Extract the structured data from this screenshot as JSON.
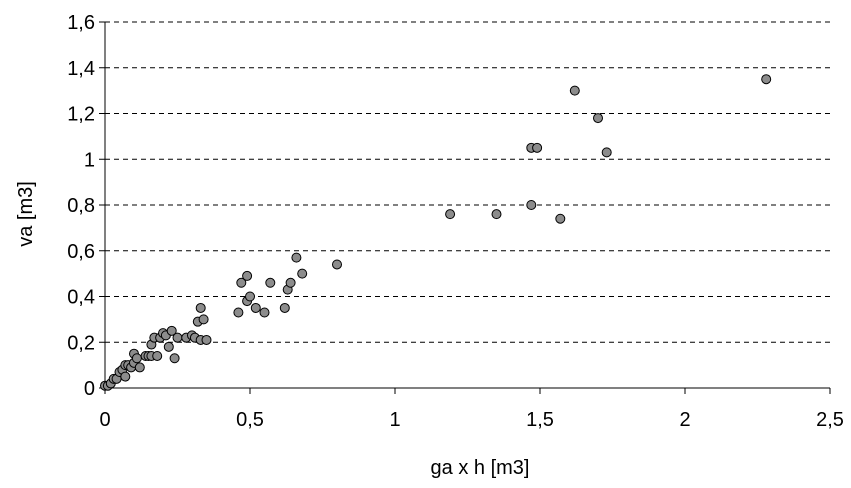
{
  "chart_data": {
    "type": "scatter",
    "title": "",
    "xlabel": "ga x h [m3]",
    "ylabel": "va [m3]",
    "xlim": [
      0,
      2.5
    ],
    "ylim": [
      0,
      1.6
    ],
    "x_ticks": [
      "0",
      "0,5",
      "1",
      "1,5",
      "2",
      "2,5"
    ],
    "y_ticks": [
      "0",
      "0,2",
      "0,4",
      "0,6",
      "0,8",
      "1",
      "1,2",
      "1,4",
      "1,6"
    ],
    "grid": "horizontal-dashed",
    "marker_color": "#8c8c8c",
    "series": [
      {
        "points": [
          [
            0.0,
            0.01
          ],
          [
            0.01,
            0.01
          ],
          [
            0.02,
            0.02
          ],
          [
            0.03,
            0.04
          ],
          [
            0.04,
            0.04
          ],
          [
            0.05,
            0.07
          ],
          [
            0.06,
            0.08
          ],
          [
            0.07,
            0.1
          ],
          [
            0.07,
            0.05
          ],
          [
            0.08,
            0.1
          ],
          [
            0.09,
            0.09
          ],
          [
            0.1,
            0.11
          ],
          [
            0.1,
            0.15
          ],
          [
            0.11,
            0.13
          ],
          [
            0.12,
            0.09
          ],
          [
            0.14,
            0.14
          ],
          [
            0.15,
            0.14
          ],
          [
            0.16,
            0.19
          ],
          [
            0.16,
            0.14
          ],
          [
            0.17,
            0.22
          ],
          [
            0.18,
            0.14
          ],
          [
            0.19,
            0.22
          ],
          [
            0.2,
            0.24
          ],
          [
            0.21,
            0.23
          ],
          [
            0.22,
            0.18
          ],
          [
            0.23,
            0.25
          ],
          [
            0.24,
            0.13
          ],
          [
            0.25,
            0.22
          ],
          [
            0.28,
            0.22
          ],
          [
            0.3,
            0.23
          ],
          [
            0.31,
            0.22
          ],
          [
            0.32,
            0.29
          ],
          [
            0.33,
            0.35
          ],
          [
            0.33,
            0.21
          ],
          [
            0.34,
            0.3
          ],
          [
            0.35,
            0.21
          ],
          [
            0.46,
            0.33
          ],
          [
            0.47,
            0.46
          ],
          [
            0.49,
            0.49
          ],
          [
            0.49,
            0.38
          ],
          [
            0.5,
            0.4
          ],
          [
            0.52,
            0.35
          ],
          [
            0.55,
            0.33
          ],
          [
            0.57,
            0.46
          ],
          [
            0.62,
            0.35
          ],
          [
            0.63,
            0.43
          ],
          [
            0.64,
            0.46
          ],
          [
            0.66,
            0.57
          ],
          [
            0.68,
            0.5
          ],
          [
            0.8,
            0.54
          ],
          [
            1.19,
            0.76
          ],
          [
            1.35,
            0.76
          ],
          [
            1.47,
            0.8
          ],
          [
            1.47,
            1.05
          ],
          [
            1.49,
            1.05
          ],
          [
            1.57,
            0.74
          ],
          [
            1.62,
            1.3
          ],
          [
            1.7,
            1.18
          ],
          [
            1.73,
            1.03
          ],
          [
            2.28,
            1.35
          ]
        ]
      }
    ]
  }
}
